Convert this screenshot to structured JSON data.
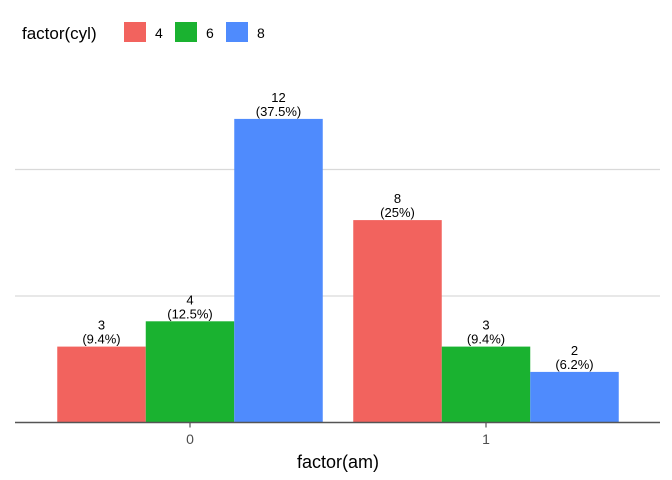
{
  "chart_data": {
    "type": "bar",
    "title": "",
    "xlabel": "factor(am)",
    "ylabel": "",
    "categories": [
      "0",
      "1"
    ],
    "legend": {
      "title": "factor(cyl)",
      "position": "top-left"
    },
    "series": [
      {
        "name": "4",
        "color": "#F2635E",
        "values": [
          3,
          8
        ],
        "labels": [
          "3\n(9.4%)",
          "8\n(25%)"
        ]
      },
      {
        "name": "6",
        "color": "#1AB230",
        "values": [
          4,
          3
        ],
        "labels": [
          "4\n(12.5%)",
          "3\n(9.4%)"
        ]
      },
      {
        "name": "8",
        "color": "#4F8BFD",
        "values": [
          12,
          2
        ],
        "labels": [
          "12\n(37.5%)",
          "2\n(6.2%)"
        ]
      }
    ],
    "ylim": [
      0,
      12
    ],
    "y_gridlines": [
      5,
      10
    ],
    "y_axis_visible": false,
    "grid": "horizontal-major"
  }
}
